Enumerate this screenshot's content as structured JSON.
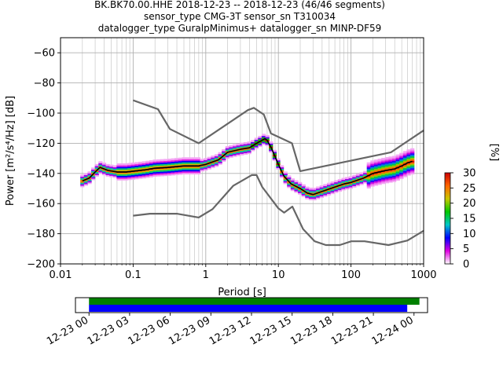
{
  "chart_data": [
    {
      "type": "line",
      "title_lines": [
        "BK.BK70.00.HHE   2018-12-23 -- 2018-12-23  (46/46 segments)",
        "sensor_type CMG-3T sensor_sn T310034",
        "datalogger_type GuralpMinimus+ datalogger_sn MINP-DF59"
      ],
      "xlabel": "Period [s]",
      "ylabel": "Power [m²/s⁴/Hz] [dB]",
      "xscale": "log",
      "xlim": [
        0.01,
        1000
      ],
      "ylim": [
        -200,
        -50
      ],
      "grid": true,
      "xticks": [
        0.01,
        0.1,
        1,
        10,
        100,
        1000
      ],
      "xtick_labels": [
        "0.01",
        "0.1",
        "1",
        "10",
        "100",
        "1000"
      ],
      "yticks": [
        -200,
        -180,
        -160,
        -140,
        -120,
        -100,
        -80,
        -60
      ],
      "ytick_labels": [
        "−200",
        "−180",
        "−160",
        "−140",
        "−120",
        "−100",
        "−80",
        "−60"
      ],
      "series": [
        {
          "role": "upper-noise-model",
          "color": "#666666",
          "x": [
            0.1,
            0.22,
            0.32,
            0.8,
            3.8,
            4.6,
            6.3,
            7.9,
            15.4,
            20,
            354.8,
            1000
          ],
          "y": [
            -91.5,
            -97.4,
            -110.5,
            -120,
            -98,
            -96.5,
            -101,
            -113.5,
            -120,
            -138.5,
            -126,
            -111.5
          ]
        },
        {
          "role": "lower-noise-model",
          "color": "#666666",
          "x": [
            0.1,
            0.17,
            0.4,
            0.8,
            1.24,
            2.4,
            4.3,
            5,
            6,
            10,
            12,
            15.6,
            21.9,
            31.6,
            45,
            70,
            101,
            154,
            328,
            600,
            1000
          ],
          "y": [
            -168,
            -166.7,
            -166.7,
            -169.2,
            -163.7,
            -148.1,
            -141.1,
            -141.1,
            -149,
            -163.2,
            -166,
            -162,
            -177,
            -185,
            -187.5,
            -187.5,
            -185,
            -185,
            -187.5,
            -184.5,
            -178
          ]
        },
        {
          "role": "mode",
          "color": "#000000",
          "x": [
            0.02,
            0.025,
            0.03,
            0.035,
            0.045,
            0.06,
            0.08,
            0.1,
            0.15,
            0.2,
            0.3,
            0.5,
            0.8,
            1,
            1.5,
            2,
            3,
            4,
            5,
            6,
            6.5,
            7,
            8,
            10,
            12,
            15,
            20,
            25,
            30,
            40,
            60,
            80,
            100,
            150,
            200,
            300,
            400,
            500,
            600,
            700
          ],
          "y": [
            -145,
            -143,
            -139,
            -136,
            -138,
            -139,
            -139,
            -138.5,
            -137.5,
            -136.5,
            -136,
            -135,
            -135,
            -134,
            -131,
            -126,
            -124,
            -123,
            -120,
            -118,
            -117,
            -118,
            -123,
            -134,
            -142,
            -147,
            -150,
            -153,
            -154,
            -152,
            -149,
            -147,
            -146,
            -143,
            -140,
            -138,
            -137,
            -135,
            -133,
            -132
          ]
        }
      ],
      "colorbar": {
        "label": "[%]",
        "min": 0,
        "max": 30,
        "ticks": [
          0,
          5,
          10,
          15,
          20,
          25,
          30
        ],
        "colors": [
          "#ffffff",
          "#e000e0",
          "#0000ff",
          "#00c8c8",
          "#00c800",
          "#c8c800",
          "#ff6600",
          "#cc0000"
        ]
      }
    },
    {
      "type": "bar",
      "role": "data-coverage",
      "xlim_hours": [
        -1,
        25
      ],
      "xtick_labels": [
        "12-23 00",
        "12-23 03",
        "12-23 06",
        "12-23 09",
        "12-23 12",
        "12-23 15",
        "12-23 18",
        "12-23 21",
        "12-24 00"
      ],
      "xtick_hours": [
        0,
        3,
        6,
        9,
        12,
        15,
        18,
        21,
        24
      ],
      "bars": [
        {
          "label": "",
          "start_hour": 0,
          "end_hour": 24.4,
          "color": "#008000"
        },
        {
          "label": "",
          "start_hour": 0,
          "end_hour": 23.5,
          "color": "#0000ff"
        }
      ]
    }
  ]
}
